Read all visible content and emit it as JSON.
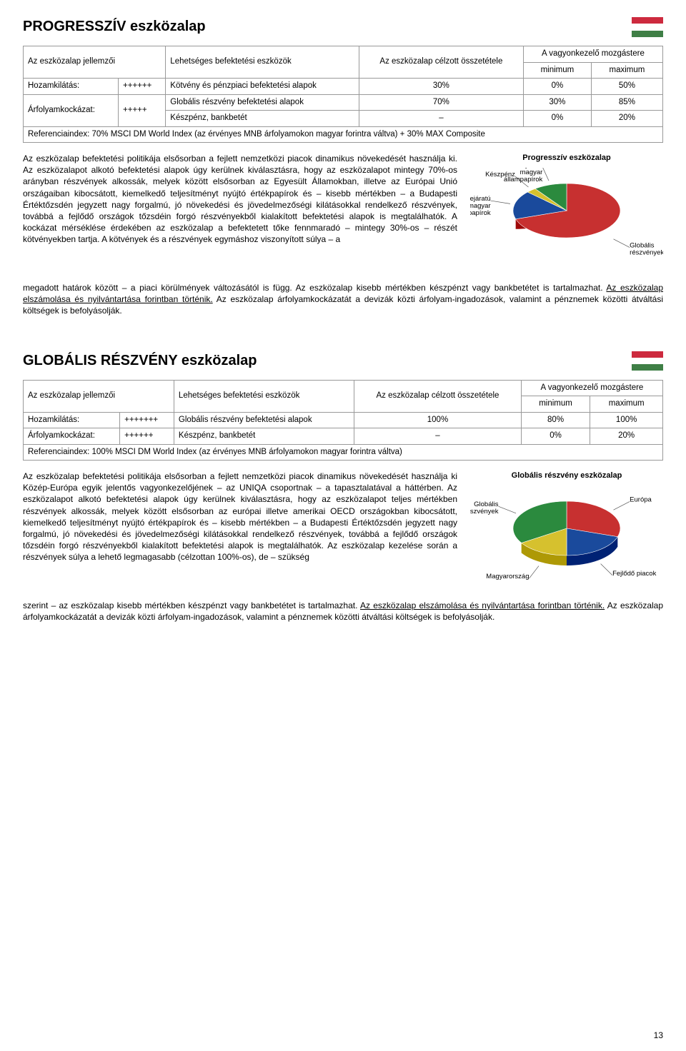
{
  "page_number": "13",
  "flag_colors": [
    "#cd2a3e",
    "#ffffff",
    "#3f7f46"
  ],
  "section1": {
    "title": "PROGRESSZÍV eszközalap",
    "table": {
      "h_col1": "Az eszközalap jellemzői",
      "h_col2": "Lehetséges befektetési eszközök",
      "h_col3": "Az eszközalap célzott összetétele",
      "h_col4": "A vagyonkezelő mozgástere",
      "h_min": "minimum",
      "h_max": "maximum",
      "l1": "Hozamkilátás:",
      "l1v": "++++++",
      "l2": "Árfolyamkockázat:",
      "l2v": "+++++",
      "r1": "Kötvény és pénzpiaci befektetési alapok",
      "r1a": "30%",
      "r1b": "0%",
      "r1c": "50%",
      "r2": "Globális részvény befektetési alapok",
      "r2a": "70%",
      "r2b": "30%",
      "r2c": "85%",
      "r3": "Készpénz, bankbetét",
      "r3a": "–",
      "r3b": "0%",
      "r3c": "20%",
      "ref": "Referenciaindex: 70% MSCI DM World Index (az érvényes MNB árfolyamokon magyar forintra váltva) + 30% MAX Composite"
    },
    "chart": {
      "title": "Progresszív eszközalap",
      "slices": [
        {
          "label": "Globális részvények",
          "value": 70,
          "color": "#c73030"
        },
        {
          "label": "Hosszú lejáratú magyar állampapírok",
          "value": 17,
          "color": "#1a4a9c"
        },
        {
          "label": "Készpénz",
          "value": 3,
          "color": "#d6c12e"
        },
        {
          "label": "Rövid lejáratú magyar állampapírok",
          "value": 10,
          "color": "#2b8a3e"
        }
      ]
    },
    "body_left": "Az eszközalap befektetési politikája elsősorban a fejlett nemzetközi piacok dinamikus növekedését használja ki. Az eszközalapot alkotó befektetési alapok úgy kerülnek kiválasztásra, hogy az eszközalapot mintegy 70%-os arányban részvények alkossák, melyek között elsősorban az Egyesült Államokban, illetve az Európai Unió országaiban kibocsátott, kiemelkedő teljesítményt nyújtó értékpapírok és – kisebb mértékben – a Budapesti Értéktőzsdén jegyzett nagy forgalmú, jó növekedési és jövedelmezőségi kilátásokkal rendelkező részvények, továbbá a fejlődő országok tőzsdéin forgó részvényekből kialakított befektetési alapok is megtalálhatók. A kockázat mérséklése érdekében az eszközalap a befektetett tőke fennmaradó – mintegy 30%-os – részét kötvényekben tartja. A kötvények és a részvények egymáshoz viszonyított súlya – a",
    "body_rest": "megadott határok között – a piaci körülmények változásától is függ. Az eszközalap kisebb mértékben készpénzt vagy bankbetétet is tartalmazhat. ",
    "body_u": "Az eszközalap elszámolása és nyilvántartása forintban történik.",
    "body_tail": " Az eszközalap árfolyamkockázatát a devizák közti árfolyam-ingadozások, valamint a pénznemek közötti átváltási költségek is befolyásolják."
  },
  "section2": {
    "title": "GLOBÁLIS RÉSZVÉNY eszközalap",
    "table": {
      "h_col1": "Az eszközalap jellemzői",
      "h_col2": "Lehetséges befektetési eszközök",
      "h_col3": "Az eszközalap célzott összetétele",
      "h_col4": "A vagyonkezelő mozgástere",
      "h_min": "minimum",
      "h_max": "maximum",
      "l1": "Hozamkilátás:",
      "l1v": "+++++++",
      "l2": "Árfolyamkockázat:",
      "l2v": "++++++",
      "r1": "Globális részvény befektetési alapok",
      "r1a": "100%",
      "r1b": "80%",
      "r1c": "100%",
      "r2": "Készpénz, bankbetét",
      "r2a": "–",
      "r2b": "0%",
      "r2c": "20%",
      "ref": "Referenciaindex: 100% MSCI DM World Index (az érvényes MNB árfolyamokon magyar forintra váltva)"
    },
    "chart": {
      "title": "Globális részvény eszközalap",
      "slices": [
        {
          "label": "Európa",
          "value": 30,
          "color": "#c73030"
        },
        {
          "label": "Fejlődő piacok",
          "value": 20,
          "color": "#1a4a9c"
        },
        {
          "label": "Magyarország",
          "value": 16,
          "color": "#d6c12e"
        },
        {
          "label": "Globális részvények",
          "value": 34,
          "color": "#2b8a3e"
        }
      ]
    },
    "body_left": "Az eszközalap befektetési politikája elsősorban a fejlett nemzetközi piacok dinamikus növekedését használja ki Közép-Európa egyik jelentős vagyonkezelőjének – az UNIQA csoportnak – a tapasztalatával a háttérben. Az eszközalapot alkotó befektetési alapok úgy kerülnek kiválasztásra, hogy az eszközalapot teljes mértékben részvények alkossák, melyek között elsősorban az európai illetve amerikai OECD országokban kibocsátott, kiemelkedő teljesítményt nyújtó értékpapírok és – kisebb mértékben – a Budapesti Értéktőzsdén jegyzett nagy forgalmú, jó növekedési és jövedelmezőségi kilátásokkal rendelkező részvények, továbbá a fejlődő országok tőzsdéin forgó részvényekből kialakított befektetési alapok is megtalálhatók. Az eszközalap kezelése során a részvények súlya a lehető legmagasabb (célzottan 100%-os), de – szükség",
    "body_rest": "szerint – az eszközalap kisebb mértékben készpénzt vagy bankbetétet is tartalmazhat. ",
    "body_u": "Az eszközalap elszámolása és nyilvántartása forintban történik.",
    "body_tail": " Az eszközalap árfolyamkockázatát a devizák közti árfolyam-ingadozások, valamint a pénznemek közötti átváltási költségek is befolyásolják."
  }
}
